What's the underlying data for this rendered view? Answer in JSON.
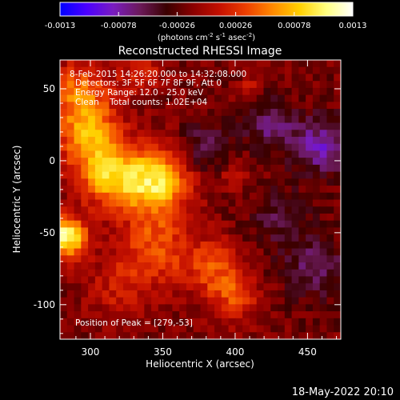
{
  "colorbar": {
    "ticks": [
      "-0.0013",
      "-0.00078",
      "-0.00026",
      "0.00026",
      "0.00078",
      "0.0013"
    ],
    "unit_parts": [
      "(photons cm",
      "-2",
      " s",
      "-1",
      " asec",
      "-2",
      ")"
    ],
    "gradient": [
      "#0000ff",
      "#4b00ff",
      "#7a1cc0",
      "#6b1a5a",
      "#3a0000",
      "#8b0000",
      "#c41000",
      "#ee4000",
      "#ff8a00",
      "#ffd000",
      "#ffff80",
      "#ffffff"
    ]
  },
  "plot": {
    "title": "Reconstructed RHESSI Image",
    "xlabel": "Heliocentric X (arcsec)",
    "ylabel": "Heliocentric Y (arcsec)"
  },
  "annotations": {
    "time_range": "8-Feb-2015 14:26:20.000 to 14:32:08.000",
    "detectors": "Detectors: 3F 5F 6F 7F 8F 9F, Att 0",
    "energy": "Energy Range: 12.0 - 25.0 keV",
    "clean": "Clean    Total counts: 1.02E+04",
    "peak": "Position of Peak = [279,-53]"
  },
  "footer": {
    "timestamp": "18-May-2022 20:10"
  },
  "chart_data": {
    "type": "heatmap",
    "title": "Reconstructed RHESSI Image",
    "xlabel": "Heliocentric X (arcsec)",
    "ylabel": "Heliocentric Y (arcsec)",
    "xlim": [
      279,
      473
    ],
    "ylim": [
      -124,
      70
    ],
    "x_ticks": [
      300,
      350,
      400,
      450
    ],
    "y_ticks": [
      50,
      0,
      -50,
      -100
    ],
    "value_range": [
      -0.0013,
      0.0013
    ],
    "peak": [
      279,
      -53
    ],
    "regions": [
      {
        "desc": "bright source",
        "x": 283,
        "y": -53,
        "r": 10,
        "v": 0.0013
      },
      {
        "desc": "bright ridge",
        "x": 345,
        "y": -15,
        "r": 16,
        "v": 0.0011
      },
      {
        "desc": "bright ridge",
        "x": 312,
        "y": -10,
        "r": 15,
        "v": 0.0009
      },
      {
        "desc": "bright ridge",
        "x": 298,
        "y": 20,
        "r": 16,
        "v": 0.0008
      },
      {
        "desc": "upper left",
        "x": 292,
        "y": 50,
        "r": 14,
        "v": 0.0006
      },
      {
        "desc": "lower arm",
        "x": 345,
        "y": -60,
        "r": 18,
        "v": 0.00055
      },
      {
        "desc": "lower arm",
        "x": 385,
        "y": -75,
        "r": 14,
        "v": 0.0005
      },
      {
        "desc": "lower arm",
        "x": 400,
        "y": -95,
        "r": 12,
        "v": 0.00045
      },
      {
        "desc": "lower arm",
        "x": 320,
        "y": -90,
        "r": 16,
        "v": 0.0003
      },
      {
        "desc": "top blob",
        "x": 335,
        "y": 60,
        "r": 10,
        "v": 0.0004
      },
      {
        "desc": "small source",
        "x": 400,
        "y": -12,
        "r": 6,
        "v": 0.0004
      },
      {
        "desc": "small source",
        "x": 410,
        "y": 52,
        "r": 5,
        "v": 0.00025
      },
      {
        "desc": "negative",
        "x": 460,
        "y": 10,
        "r": 14,
        "v": -0.0006
      },
      {
        "desc": "negative",
        "x": 380,
        "y": 10,
        "r": 12,
        "v": -0.0004
      },
      {
        "desc": "negative",
        "x": 455,
        "y": -75,
        "r": 16,
        "v": -0.0004
      },
      {
        "desc": "negative",
        "x": 425,
        "y": 25,
        "r": 12,
        "v": -0.00045
      },
      {
        "desc": "negative",
        "x": 430,
        "y": -40,
        "r": 14,
        "v": -0.0003
      }
    ]
  }
}
